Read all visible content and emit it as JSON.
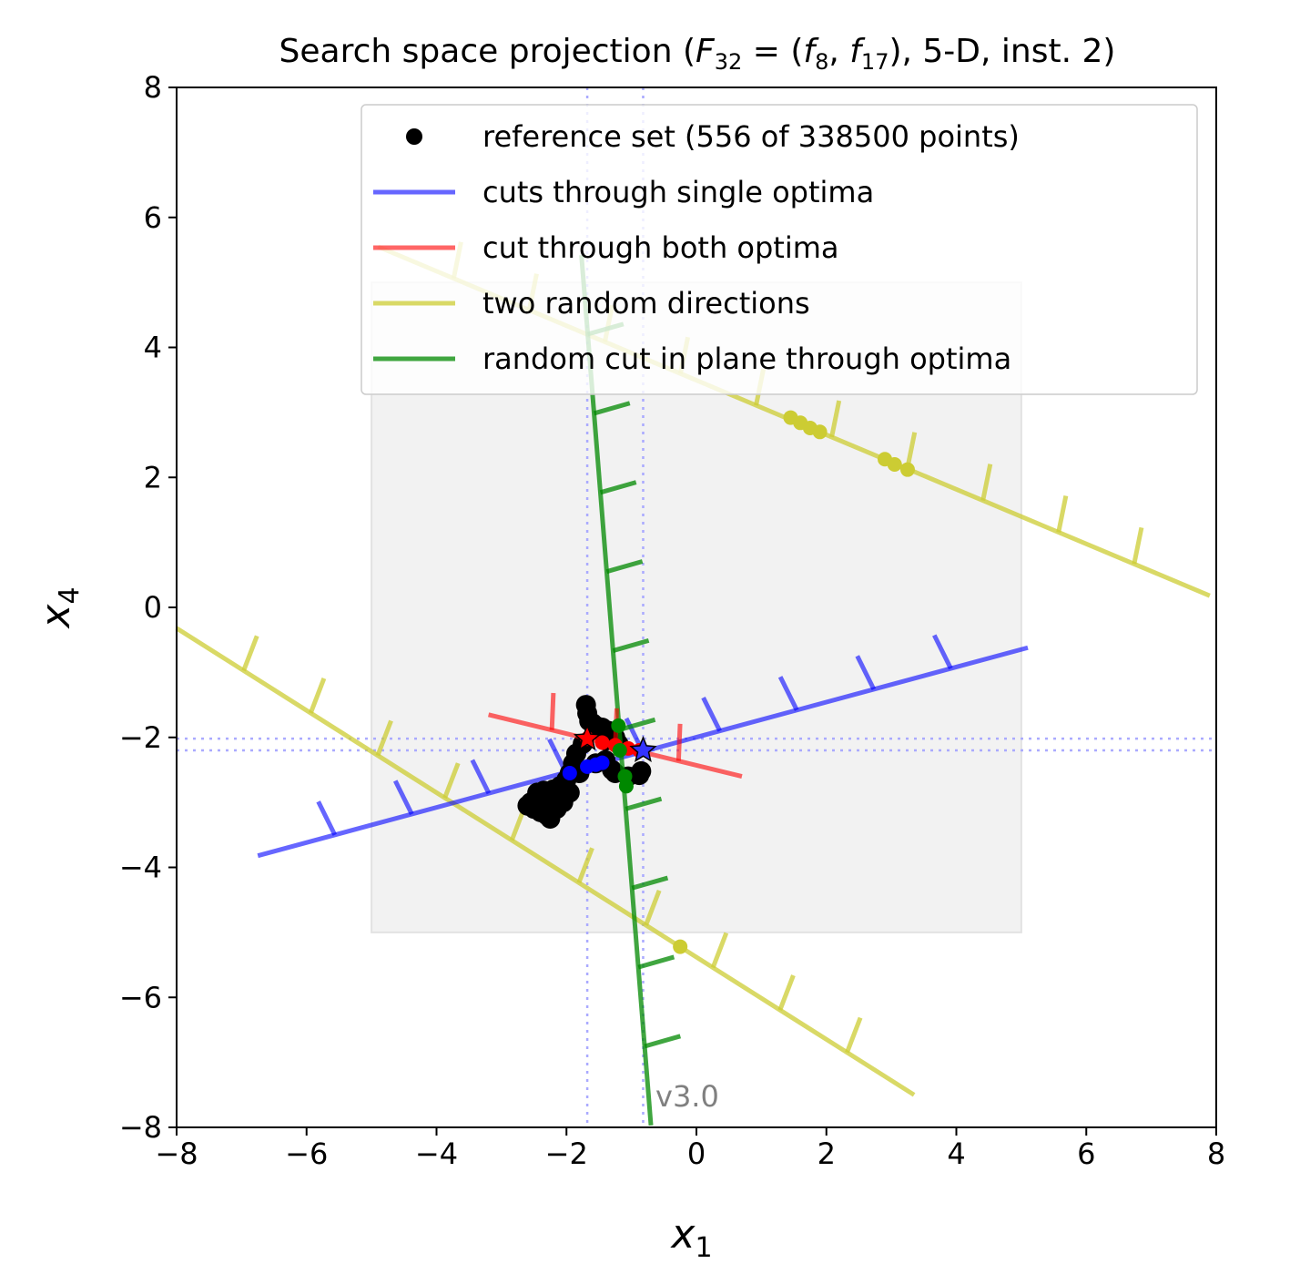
{
  "chart_data": {
    "type": "line",
    "title": {
      "prefix": "Search space projection (",
      "F": "F",
      "F_sub": "32",
      "eq": " = (",
      "f1": "f",
      "f1_sub": "8",
      "comma": ", ",
      "f2": "f",
      "f2_sub": "17",
      "suffix": "), 5-D, inst. 2)"
    },
    "xlabel": {
      "base": "x",
      "sub": "1"
    },
    "ylabel": {
      "base": "x",
      "sub": "4"
    },
    "xlim": [
      -8,
      8
    ],
    "ylim": [
      -8,
      8
    ],
    "xticks": [
      -8,
      -6,
      -4,
      -2,
      0,
      2,
      4,
      6,
      8
    ],
    "yticks": [
      -8,
      -6,
      -4,
      -2,
      0,
      2,
      4,
      6,
      8
    ],
    "tick_labels": [
      "−8",
      "−6",
      "−4",
      "−2",
      "0",
      "2",
      "4",
      "6",
      "8"
    ],
    "domain_box": {
      "x": [
        -5,
        5
      ],
      "y": [
        -5,
        5
      ],
      "color": "#f2f2f2"
    },
    "optima": [
      {
        "x": -1.68,
        "y": -2.02,
        "color": "#ff0000",
        "marker": "star"
      },
      {
        "x": -0.82,
        "y": -2.2,
        "color": "#3333ff",
        "marker": "star"
      }
    ],
    "guide_color": "#aaaaff",
    "series": [
      {
        "name": "reference set (556 of 338500 points)",
        "kind": "points",
        "color": "#000000",
        "points": [
          [
            -1.7,
            -1.5
          ],
          [
            -1.68,
            -1.63
          ],
          [
            -1.65,
            -1.75
          ],
          [
            -1.6,
            -1.78
          ],
          [
            -1.55,
            -1.82
          ],
          [
            -1.45,
            -1.85
          ],
          [
            -1.35,
            -1.9
          ],
          [
            -1.3,
            -1.95
          ],
          [
            -1.25,
            -2.0
          ],
          [
            -1.4,
            -2.05
          ],
          [
            -1.2,
            -2.1
          ],
          [
            -1.75,
            -2.1
          ],
          [
            -1.85,
            -2.25
          ],
          [
            -1.9,
            -2.4
          ],
          [
            -1.95,
            -2.55
          ],
          [
            -2.0,
            -2.65
          ],
          [
            -2.1,
            -2.75
          ],
          [
            -2.2,
            -2.8
          ],
          [
            -2.35,
            -2.82
          ],
          [
            -2.45,
            -2.95
          ],
          [
            -2.55,
            -3.0
          ],
          [
            -2.6,
            -3.05
          ],
          [
            -2.5,
            -3.1
          ],
          [
            -2.4,
            -3.15
          ],
          [
            -2.3,
            -3.2
          ],
          [
            -2.25,
            -3.25
          ],
          [
            -2.15,
            -3.1
          ],
          [
            -2.05,
            -3.0
          ],
          [
            -1.95,
            -2.85
          ],
          [
            -2.2,
            -3.0
          ],
          [
            -2.35,
            -3.1
          ],
          [
            -2.45,
            -2.85
          ],
          [
            -1.8,
            -2.55
          ],
          [
            -1.55,
            -2.4
          ],
          [
            -1.4,
            -2.35
          ],
          [
            -1.3,
            -2.5
          ],
          [
            -1.25,
            -2.55
          ],
          [
            -1.05,
            -2.6
          ],
          [
            -0.88,
            -2.58
          ],
          [
            -0.85,
            -2.52
          ]
        ]
      },
      {
        "name": "cuts through single optima",
        "kind": "line",
        "color": "#0000ff",
        "line": [
          [
            -6.75,
            -3.82
          ],
          [
            5.1,
            -0.62
          ]
        ],
        "markers": [
          [
            -1.68,
            -2.45
          ],
          [
            -1.55,
            -2.42
          ],
          [
            -1.45,
            -2.39
          ],
          [
            -1.95,
            -2.55
          ]
        ]
      },
      {
        "name": "cut through both optima",
        "kind": "line",
        "color": "#ff0000",
        "line": [
          [
            -3.2,
            -1.65
          ],
          [
            0.7,
            -2.6
          ]
        ],
        "markers": [
          [
            -1.68,
            -2.02
          ],
          [
            -1.45,
            -2.08
          ],
          [
            -1.25,
            -2.12
          ],
          [
            -1.05,
            -2.17
          ],
          [
            -0.88,
            -2.2
          ]
        ]
      },
      {
        "name": "two random directions",
        "kind": "lines",
        "color": "#cccc33",
        "lines": [
          [
            [
              -4.9,
              5.55
            ],
            [
              7.9,
              0.18
            ]
          ],
          [
            [
              -8.0,
              -0.32
            ],
            [
              3.35,
              -7.5
            ]
          ]
        ],
        "markers": [
          [
            1.45,
            2.92
          ],
          [
            1.6,
            2.84
          ],
          [
            1.75,
            2.76
          ],
          [
            1.9,
            2.7
          ],
          [
            2.9,
            2.28
          ],
          [
            3.05,
            2.2
          ],
          [
            3.25,
            2.12
          ],
          [
            -0.25,
            -5.22
          ]
        ]
      },
      {
        "name": "random cut in plane through optima",
        "kind": "line",
        "color": "#008800",
        "line": [
          [
            -1.77,
            5.42
          ],
          [
            -0.7,
            -7.97
          ]
        ],
        "markers": [
          [
            -1.2,
            -1.82
          ],
          [
            -1.1,
            -2.6
          ],
          [
            -1.08,
            -2.75
          ],
          [
            -1.18,
            -2.2
          ]
        ]
      }
    ],
    "legend_position": "top-right",
    "watermark": "v3.0"
  }
}
